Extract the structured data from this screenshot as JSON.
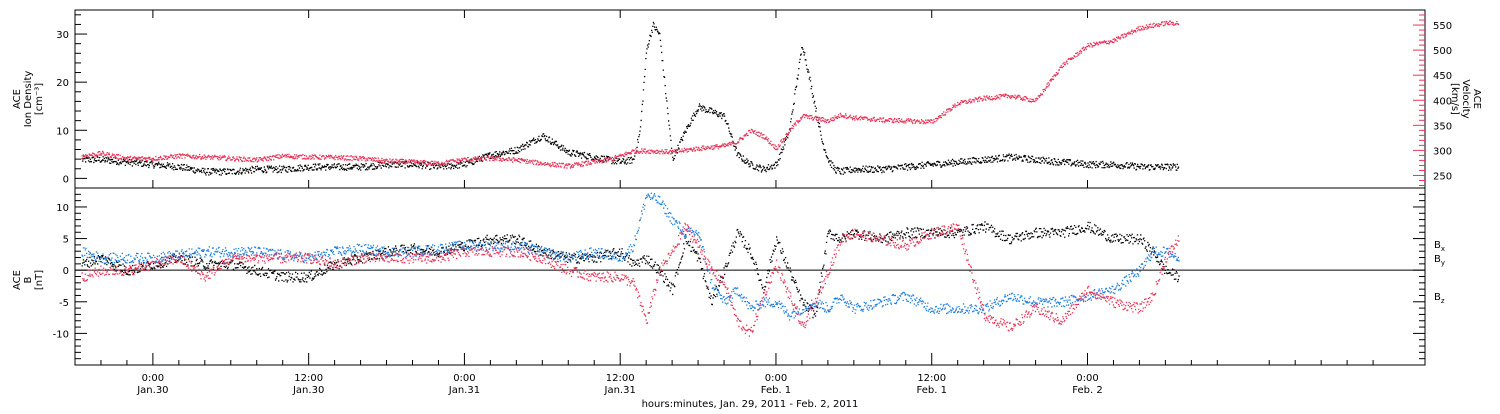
{
  "colors": {
    "black": "#000000",
    "red": "#e8345a",
    "blue": "#1e7fe0"
  },
  "chart_data": [
    {
      "type": "scatter",
      "panel": "top",
      "ylabel_left": [
        "ACE",
        "Ion Density",
        "[cm⁻³]"
      ],
      "ylabel_right": [
        "ACE",
        "Velocity",
        "[km/s]"
      ],
      "ylim_left": [
        -2,
        35
      ],
      "ylim_right": [
        225,
        580
      ],
      "yticks_left": [
        "0",
        "10",
        "20",
        "30"
      ],
      "yticks_right": [
        "250",
        "300",
        "350",
        "400",
        "450",
        "500",
        "550"
      ],
      "series": [
        {
          "name": "Density",
          "color": "black",
          "axis": "left",
          "x": [
            -5.5,
            -4,
            -2,
            0,
            2,
            4,
            6,
            8,
            10,
            12,
            14,
            16,
            18,
            20,
            22,
            24,
            26,
            28,
            30,
            32,
            33,
            35,
            36,
            37,
            37.5,
            38,
            38.5,
            39,
            40,
            41,
            42,
            43,
            44,
            45,
            46,
            47,
            48,
            49,
            50,
            51,
            51.5,
            52,
            52.5,
            53,
            54,
            55,
            56,
            58,
            60,
            62,
            64,
            66,
            68,
            70,
            72,
            74,
            76,
            78,
            79
          ],
          "y": [
            4,
            4,
            3.5,
            3,
            2.5,
            1.5,
            1.5,
            2,
            2,
            2.5,
            2.5,
            2.5,
            3,
            3,
            2.5,
            3,
            5,
            6,
            9,
            5.5,
            5,
            4,
            3.5,
            4,
            10,
            27,
            32,
            30,
            4,
            10,
            15,
            14,
            13,
            5,
            3,
            2,
            3,
            10,
            28,
            15,
            8,
            4,
            2,
            1.5,
            2,
            2,
            2,
            2.5,
            3,
            3.5,
            4,
            4.5,
            4,
            3.5,
            3,
            3,
            2.5,
            2.5,
            2.5
          ]
        },
        {
          "name": "Velocity",
          "color": "red",
          "axis": "right",
          "x": [
            -5.5,
            -4,
            -2,
            0,
            2,
            4,
            6,
            8,
            10,
            12,
            14,
            16,
            18,
            20,
            22,
            24,
            26,
            28,
            30,
            32,
            34,
            35,
            36,
            36.5,
            37,
            38,
            40,
            42,
            44,
            45,
            46,
            47,
            48,
            49,
            50,
            51,
            52,
            53,
            54,
            56,
            58,
            60,
            62,
            64,
            66,
            68,
            70,
            72,
            74,
            76,
            78,
            79
          ],
          "y": [
            290,
            295,
            285,
            285,
            290,
            288,
            285,
            282,
            290,
            288,
            287,
            285,
            280,
            278,
            275,
            283,
            285,
            282,
            275,
            270,
            278,
            282,
            290,
            295,
            300,
            300,
            298,
            305,
            310,
            318,
            340,
            330,
            305,
            340,
            370,
            365,
            360,
            372,
            366,
            362,
            360,
            358,
            395,
            405,
            410,
            400,
            470,
            510,
            520,
            545,
            555,
            555
          ]
        }
      ]
    },
    {
      "type": "scatter",
      "panel": "bottom",
      "ylabel_left": [
        "ACE",
        "B",
        "[nT]"
      ],
      "ylim": [
        -15,
        13
      ],
      "yticks": [
        "-10",
        "-5",
        "0",
        "5",
        "10"
      ],
      "legend": [
        {
          "label": "B",
          "sub": "x",
          "color": "black"
        },
        {
          "label": "B",
          "sub": "y",
          "color": "blue"
        },
        {
          "label": "B",
          "sub": "z",
          "color": "red"
        }
      ],
      "series": [
        {
          "name": "Bx",
          "color": "black",
          "x": [
            -5.5,
            -4,
            -2,
            0,
            2,
            4,
            6,
            8,
            10,
            12,
            14,
            16,
            18,
            20,
            22,
            24,
            26,
            28,
            30,
            32,
            34,
            36,
            37,
            38,
            39,
            40,
            41,
            42,
            43,
            44,
            45,
            46,
            47,
            48,
            49,
            50,
            51,
            52,
            53,
            54,
            56,
            58,
            60,
            62,
            64,
            66,
            68,
            70,
            72,
            74,
            76,
            77,
            78,
            79
          ],
          "y": [
            1,
            2,
            0,
            1,
            2,
            1,
            1,
            0,
            -1,
            -1,
            1,
            2,
            3,
            3.5,
            3,
            4,
            5,
            5,
            3,
            2,
            2,
            3,
            1,
            2,
            0,
            -3,
            5,
            2,
            -5,
            0,
            6,
            3,
            -3,
            5,
            0,
            -5,
            -7,
            6,
            5,
            6,
            5,
            6,
            6,
            6,
            7,
            5,
            6,
            6,
            7,
            5,
            5,
            3,
            0,
            -1
          ]
        },
        {
          "name": "By",
          "color": "blue",
          "x": [
            -5.5,
            -4,
            -2,
            0,
            2,
            4,
            6,
            8,
            10,
            12,
            14,
            16,
            18,
            20,
            22,
            24,
            26,
            28,
            30,
            32,
            34,
            36,
            37,
            38,
            39,
            40,
            41,
            42,
            43,
            44,
            45,
            46,
            47,
            48,
            49,
            50,
            51,
            52,
            53,
            54,
            56,
            58,
            60,
            62,
            64,
            66,
            68,
            70,
            72,
            74,
            76,
            77,
            78,
            79
          ],
          "y": [
            3,
            2,
            2,
            2,
            2.5,
            3,
            3,
            3,
            2.5,
            2,
            3,
            3.5,
            3,
            3,
            3.5,
            4,
            4,
            4,
            3,
            2,
            3,
            2,
            4,
            12,
            11,
            8,
            6,
            6,
            -2,
            -5,
            -3,
            -6,
            -5,
            -5,
            -7,
            -6,
            -5,
            -6,
            -4,
            -6,
            -5,
            -4,
            -6,
            -6,
            -6,
            -4,
            -5,
            -5,
            -4,
            -3,
            0,
            3,
            3,
            2
          ]
        },
        {
          "name": "Bz",
          "color": "red",
          "x": [
            -5.5,
            -4,
            -2,
            0,
            2,
            4,
            6,
            8,
            10,
            12,
            14,
            16,
            18,
            20,
            22,
            24,
            26,
            28,
            30,
            32,
            34,
            36,
            37,
            38,
            39,
            40,
            41,
            42,
            43,
            44,
            45,
            46,
            47,
            48,
            49,
            50,
            51,
            52,
            53,
            54,
            56,
            58,
            60,
            62,
            64,
            66,
            68,
            70,
            72,
            74,
            76,
            77,
            78,
            79
          ],
          "y": [
            -1,
            0,
            0,
            1,
            2,
            -1,
            2,
            2,
            2,
            2,
            1,
            2,
            2,
            2,
            2,
            3,
            3,
            3,
            2,
            0,
            -1,
            -1,
            -2,
            -8,
            0,
            3,
            7,
            4,
            0,
            -2,
            -8,
            -10,
            -4,
            1,
            -4,
            -9,
            -5,
            0,
            5,
            6,
            5,
            4,
            6,
            7,
            -7,
            -9,
            -6,
            -8,
            -3,
            -5,
            -6,
            -4,
            2,
            5
          ]
        }
      ]
    }
  ],
  "x_axis": {
    "ticks": [
      {
        "time": "0:00",
        "date": "Jan.30"
      },
      {
        "time": "12:00",
        "date": "Jan.30"
      },
      {
        "time": "0:00",
        "date": "Jan.31"
      },
      {
        "time": "12:00",
        "date": "Jan.31"
      },
      {
        "time": "0:00",
        "date": "Feb. 1"
      },
      {
        "time": "12:00",
        "date": "Feb. 1"
      },
      {
        "time": "0:00",
        "date": "Feb. 2"
      }
    ],
    "label": "hours:minutes, Jan. 29, 2011 - Feb. 2, 2011"
  }
}
